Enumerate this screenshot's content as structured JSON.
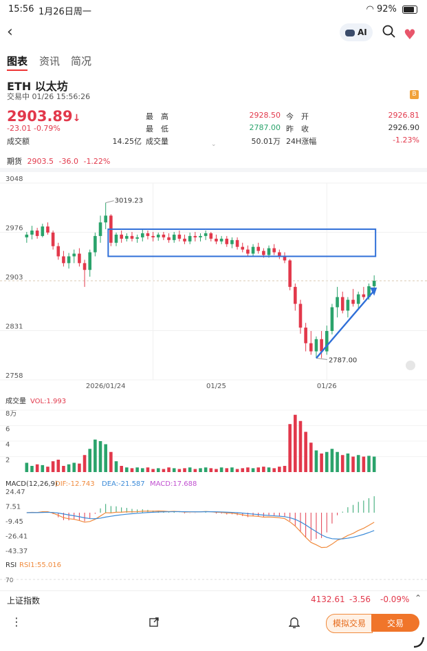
{
  "status_bar": {
    "time": "15:56",
    "date": "1月26日周一",
    "battery": "92%"
  },
  "header": {
    "ai_label": "AI"
  },
  "tabs": [
    {
      "label": "图表",
      "active": true
    },
    {
      "label": "资讯",
      "active": false
    },
    {
      "label": "简况",
      "active": false
    }
  ],
  "asset": {
    "name": "ETH  以太坊",
    "status": "交易中 01/26 15:56:26",
    "badge": "B"
  },
  "quote": {
    "price": "2903.89",
    "arrow": "↓",
    "change": "-23.01",
    "change_pct": "-0.79%",
    "high_label": "最　高",
    "high": "2928.50",
    "low_label": "最　低",
    "low": "2787.00",
    "open_label": "今　开",
    "open": "2926.81",
    "prev_label": "昨　收",
    "prev": "2926.90",
    "turnover_label": "成交额",
    "turnover": "14.25亿",
    "volume_label": "成交量",
    "volume": "50.01万",
    "change24_label": "24H涨幅",
    "change24": "-1.23%"
  },
  "futures": {
    "label": "期货",
    "price": "2903.5",
    "change": "-36.0",
    "pct": "-1.22%"
  },
  "chart_data": {
    "type": "candlestick",
    "y_ticks": [
      "3048",
      "2976",
      "2903",
      "2831",
      "2758"
    ],
    "x_ticks": [
      "2026/01/24",
      "01/25",
      "01/26"
    ],
    "annotation_high": "3019.23",
    "annotation_low": "2787.00",
    "ylim": [
      2758,
      3048
    ],
    "candles": [
      [
        2968,
        2976,
        2960,
        2972
      ],
      [
        2972,
        2985,
        2965,
        2978
      ],
      [
        2978,
        2982,
        2966,
        2970
      ],
      [
        2970,
        2988,
        2968,
        2984
      ],
      [
        2984,
        2990,
        2972,
        2975
      ],
      [
        2975,
        2978,
        2950,
        2955
      ],
      [
        2955,
        2960,
        2935,
        2940
      ],
      [
        2940,
        2948,
        2925,
        2930
      ],
      [
        2930,
        2945,
        2922,
        2940
      ],
      [
        2940,
        2950,
        2930,
        2944
      ],
      [
        2944,
        2952,
        2925,
        2930
      ],
      [
        2930,
        2935,
        2895,
        2920
      ],
      [
        2920,
        2950,
        2910,
        2946
      ],
      [
        2946,
        2975,
        2940,
        2970
      ],
      [
        2970,
        3000,
        2960,
        2990
      ],
      [
        2990,
        3019,
        2980,
        3000
      ],
      [
        3000,
        3002,
        2955,
        2960
      ],
      [
        2960,
        2975,
        2955,
        2972
      ],
      [
        2972,
        2978,
        2960,
        2966
      ],
      [
        2966,
        2974,
        2962,
        2970
      ],
      [
        2970,
        2976,
        2962,
        2966
      ],
      [
        2966,
        2972,
        2960,
        2968
      ],
      [
        2968,
        2980,
        2962,
        2974
      ],
      [
        2974,
        2978,
        2965,
        2970
      ],
      [
        2970,
        2976,
        2962,
        2968
      ],
      [
        2968,
        2975,
        2963,
        2972
      ],
      [
        2972,
        2976,
        2964,
        2968
      ],
      [
        2968,
        2974,
        2960,
        2964
      ],
      [
        2964,
        2976,
        2960,
        2972
      ],
      [
        2972,
        2978,
        2962,
        2966
      ],
      [
        2966,
        2972,
        2958,
        2962
      ],
      [
        2962,
        2975,
        2958,
        2970
      ],
      [
        2970,
        2976,
        2962,
        2968
      ],
      [
        2968,
        2974,
        2962,
        2970
      ],
      [
        2970,
        2978,
        2964,
        2974
      ],
      [
        2974,
        2976,
        2962,
        2966
      ],
      [
        2966,
        2972,
        2958,
        2962
      ],
      [
        2962,
        2970,
        2958,
        2966
      ],
      [
        2966,
        2970,
        2954,
        2958
      ],
      [
        2958,
        2968,
        2952,
        2964
      ],
      [
        2964,
        2968,
        2950,
        2954
      ],
      [
        2954,
        2960,
        2946,
        2950
      ],
      [
        2950,
        2956,
        2940,
        2944
      ],
      [
        2944,
        2958,
        2940,
        2954
      ],
      [
        2954,
        2960,
        2944,
        2948
      ],
      [
        2948,
        2952,
        2938,
        2942
      ],
      [
        2942,
        2956,
        2938,
        2952
      ],
      [
        2952,
        2958,
        2942,
        2946
      ],
      [
        2946,
        2950,
        2936,
        2940
      ],
      [
        2940,
        2946,
        2930,
        2934
      ],
      [
        2934,
        2936,
        2890,
        2895
      ],
      [
        2895,
        2900,
        2860,
        2870
      ],
      [
        2870,
        2876,
        2826,
        2835
      ],
      [
        2835,
        2842,
        2800,
        2812
      ],
      [
        2812,
        2830,
        2795,
        2800
      ],
      [
        2800,
        2822,
        2790,
        2818
      ],
      [
        2818,
        2830,
        2790,
        2800
      ],
      [
        2800,
        2838,
        2795,
        2830
      ],
      [
        2830,
        2870,
        2825,
        2865
      ],
      [
        2865,
        2895,
        2850,
        2880
      ],
      [
        2880,
        2888,
        2856,
        2860
      ],
      [
        2860,
        2880,
        2850,
        2876
      ],
      [
        2876,
        2892,
        2866,
        2870
      ],
      [
        2870,
        2888,
        2862,
        2884
      ],
      [
        2884,
        2895,
        2876,
        2880
      ],
      [
        2880,
        2900,
        2876,
        2896
      ],
      [
        2896,
        2912,
        2890,
        2904
      ]
    ],
    "volumes": [
      1.2,
      0.8,
      1.0,
      0.9,
      0.7,
      1.4,
      1.6,
      0.8,
      1.0,
      1.2,
      1.1,
      2.2,
      3.0,
      4.2,
      4.0,
      3.6,
      2.6,
      1.4,
      0.8,
      0.6,
      0.5,
      0.6,
      0.5,
      0.6,
      0.4,
      0.5,
      0.4,
      0.6,
      0.5,
      0.4,
      0.5,
      0.6,
      0.4,
      0.5,
      0.6,
      0.5,
      0.4,
      0.6,
      0.5,
      0.6,
      0.4,
      0.5,
      0.6,
      0.5,
      0.6,
      0.7,
      0.6,
      0.5,
      0.7,
      0.8,
      6.2,
      7.4,
      6.6,
      5.2,
      3.8,
      2.8,
      2.4,
      2.6,
      3.0,
      2.6,
      2.2,
      2.4,
      2.0,
      2.2,
      2.0,
      2.1,
      2.0
    ],
    "volume_ticks": [
      "8万",
      "6",
      "4",
      "2"
    ],
    "volume_label": "成交量",
    "volume_value": "VOL:1.993",
    "macd_label": "MACD(12,26,9)",
    "dif": "DIF:-12.743",
    "dea": "DEA:-21.587",
    "macd": "MACD:17.688",
    "macd_ticks": [
      "24.47",
      "7.51",
      "-9.45",
      "-26.41",
      "-43.37"
    ],
    "rsi_label": "RSI",
    "rsi1": "RSI1:55.016",
    "rsi_tick": "70"
  },
  "ticker": {
    "name": "上证指数",
    "price": "4132.61",
    "change": "-3.56",
    "pct": "-0.09%"
  },
  "actions": {
    "sim_trade": "模拟交易",
    "trade": "交易"
  },
  "colors": {
    "up": "#e2384b",
    "down": "#2aa36b",
    "box": "#2f6fd8",
    "accent": "#f0752a"
  }
}
